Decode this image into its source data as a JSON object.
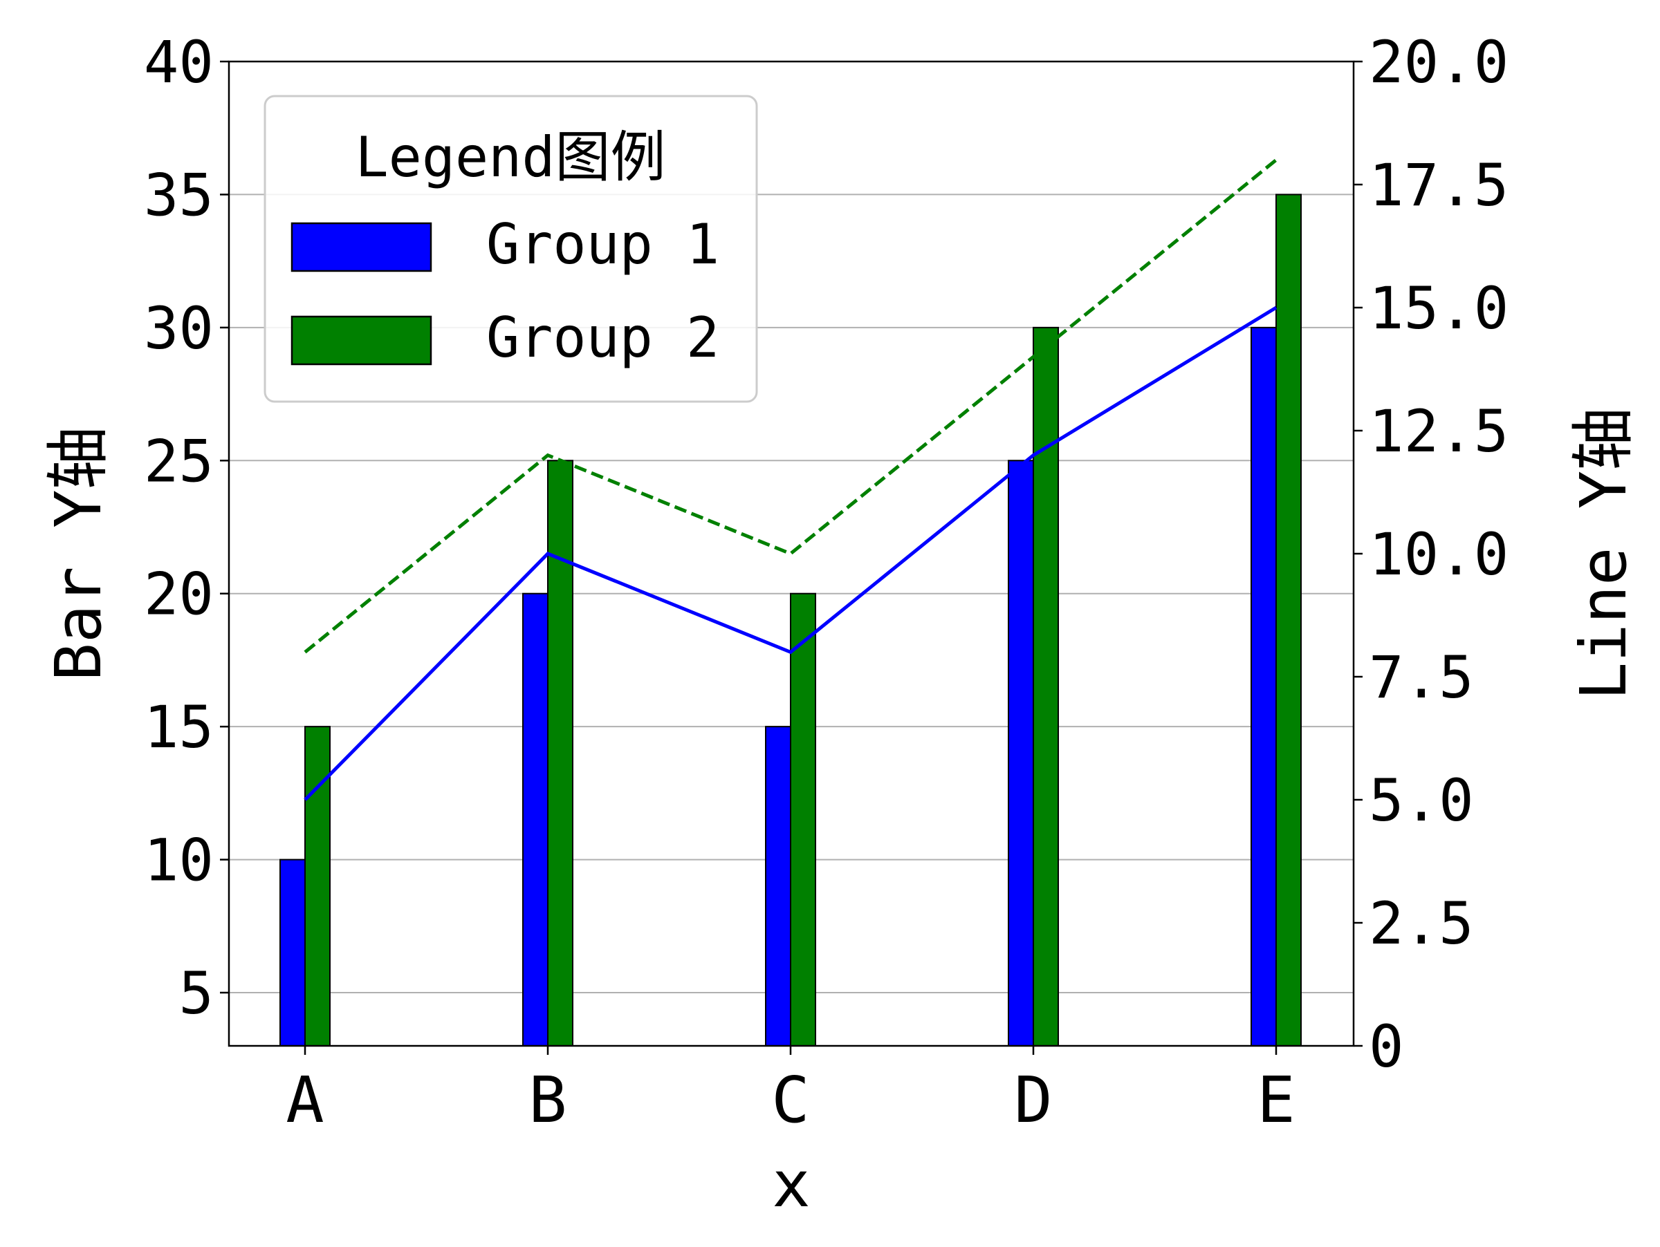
{
  "chart_data": {
    "type": "bar",
    "categories": [
      "A",
      "B",
      "C",
      "D",
      "E"
    ],
    "xlabel": "x",
    "ylabel": "Bar Y轴",
    "y2label": "Line Y轴",
    "ylim": [
      3,
      40
    ],
    "y2lim": [
      0,
      20
    ],
    "yticks": [
      5,
      10,
      15,
      20,
      25,
      30,
      35,
      40
    ],
    "y2ticks": [
      "0",
      "2.5",
      "5.0",
      "7.5",
      "10.0",
      "12.5",
      "15.0",
      "17.5",
      "20.0"
    ],
    "y2tick_values": [
      0,
      2.5,
      5,
      7.5,
      10,
      12.5,
      15,
      17.5,
      20
    ],
    "grid": "y-major",
    "legend": {
      "title": "Legend图例",
      "placement": "upper-left"
    },
    "series": [
      {
        "name": "Group 1",
        "kind": "bar",
        "axis": "left",
        "color": "#0000ff",
        "values": [
          10,
          20,
          15,
          25,
          30
        ]
      },
      {
        "name": "Group 2",
        "kind": "bar",
        "axis": "left",
        "color": "#008000",
        "values": [
          15,
          25,
          20,
          30,
          35
        ]
      },
      {
        "kind": "line",
        "axis": "right",
        "color": "#0000ff",
        "style": "solid",
        "values": [
          5,
          10,
          8,
          12,
          15
        ]
      },
      {
        "kind": "line",
        "axis": "right",
        "color": "#008000",
        "style": "dashed",
        "values": [
          8,
          12,
          10,
          14,
          18
        ]
      }
    ]
  }
}
